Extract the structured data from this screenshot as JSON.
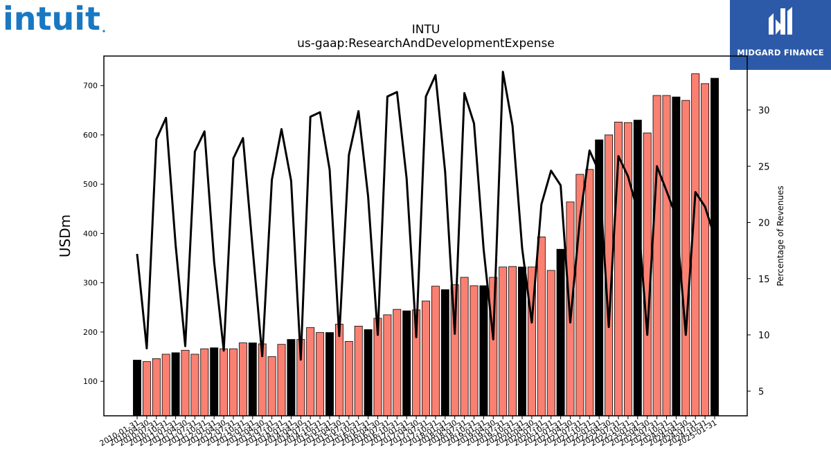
{
  "logos": {
    "left": "intuit",
    "right_text": "MIDGARD FINANCE"
  },
  "chart_data": {
    "type": "bar",
    "title": "INTU",
    "subtitle": "us-gaap:ResearchAndDevelopmentExpense",
    "ylabel": "USDm",
    "y2label": "Percentage of Revenues",
    "ylim": [
      30,
      760
    ],
    "y2lim": [
      2.8,
      34.8
    ],
    "yticks": [
      100,
      200,
      300,
      400,
      500,
      600,
      700
    ],
    "y2ticks": [
      5,
      10,
      15,
      20,
      25,
      30
    ],
    "colors": {
      "annual": "#000000",
      "quarter": "#fa8072",
      "line": "#000000"
    },
    "categories": [
      "2010-01-31",
      "2010-04-30",
      "2010-07-31",
      "2010-10-31",
      "2011-01-31",
      "2011-04-30",
      "2011-07-31",
      "2011-10-31",
      "2012-01-31",
      "2012-04-30",
      "2012-07-31",
      "2012-10-31",
      "2013-01-31",
      "2013-04-30",
      "2013-07-31",
      "2013-10-31",
      "2014-01-31",
      "2014-04-30",
      "2014-07-31",
      "2014-10-31",
      "2015-01-31",
      "2015-04-30",
      "2015-07-31",
      "2015-10-31",
      "2016-01-31",
      "2016-04-30",
      "2016-07-31",
      "2016-10-31",
      "2017-01-31",
      "2017-04-30",
      "2017-07-31",
      "2017-10-31",
      "2018-01-31",
      "2018-04-30",
      "2018-07-31",
      "2018-10-31",
      "2019-01-31",
      "2019-04-30",
      "2019-07-31",
      "2019-10-31",
      "2020-01-31",
      "2020-04-30",
      "2020-07-31",
      "2020-10-31",
      "2021-01-31",
      "2021-04-30",
      "2021-07-31",
      "2021-10-31",
      "2022-01-31",
      "2022-04-30",
      "2022-07-31",
      "2022-10-31",
      "2023-01-31",
      "2023-04-30",
      "2023-07-31",
      "2023-10-31",
      "2024-01-31",
      "2024-04-30",
      "2024-07-31",
      "2024-10-31",
      "2025-01-31"
    ],
    "annual_flags": [
      1,
      0,
      0,
      0,
      1,
      0,
      0,
      0,
      1,
      0,
      0,
      0,
      1,
      0,
      0,
      0,
      1,
      0,
      0,
      0,
      1,
      0,
      0,
      0,
      1,
      0,
      0,
      0,
      1,
      0,
      0,
      0,
      1,
      0,
      0,
      0,
      1,
      0,
      0,
      0,
      1,
      0,
      0,
      0,
      1,
      0,
      0,
      0,
      1,
      0,
      0,
      0,
      1,
      0,
      0,
      0,
      1,
      0,
      0,
      0,
      1
    ],
    "series": [
      {
        "name": "USDm",
        "values": [
          143,
          140,
          146,
          155,
          158,
          163,
          155,
          166,
          168,
          166,
          166,
          178,
          178,
          176,
          150,
          175,
          185,
          185,
          209,
          199,
          199,
          216,
          181,
          212,
          205,
          228,
          235,
          246,
          243,
          245,
          263,
          293,
          286,
          296,
          311,
          294,
          294,
          311,
          332,
          333,
          332,
          332,
          393,
          325,
          368,
          464,
          520,
          530,
          590,
          600,
          626,
          625,
          630,
          604,
          680,
          680,
          677,
          670,
          724,
          704,
          715
        ]
      },
      {
        "name": "Percentage of Revenues",
        "values": [
          17.2,
          8.8,
          27.4,
          29.3,
          18.0,
          9.0,
          26.3,
          28.1,
          16.5,
          8.6,
          25.7,
          27.5,
          17.7,
          8.1,
          23.8,
          28.3,
          23.7,
          7.8,
          29.4,
          29.8,
          24.7,
          9.9,
          26.0,
          29.9,
          22.3,
          10.0,
          31.2,
          31.6,
          23.9,
          9.8,
          31.2,
          33.1,
          24.5,
          10.1,
          31.5,
          28.8,
          17.6,
          9.6,
          33.4,
          28.6,
          17.7,
          11.1,
          21.6,
          24.6,
          23.3,
          11.1,
          20.3,
          26.4,
          24.5,
          10.7,
          25.9,
          24.1,
          21.0,
          10.0,
          25.0,
          22.8,
          20.5,
          10.0,
          22.7,
          21.4,
          18.7
        ]
      }
    ]
  }
}
